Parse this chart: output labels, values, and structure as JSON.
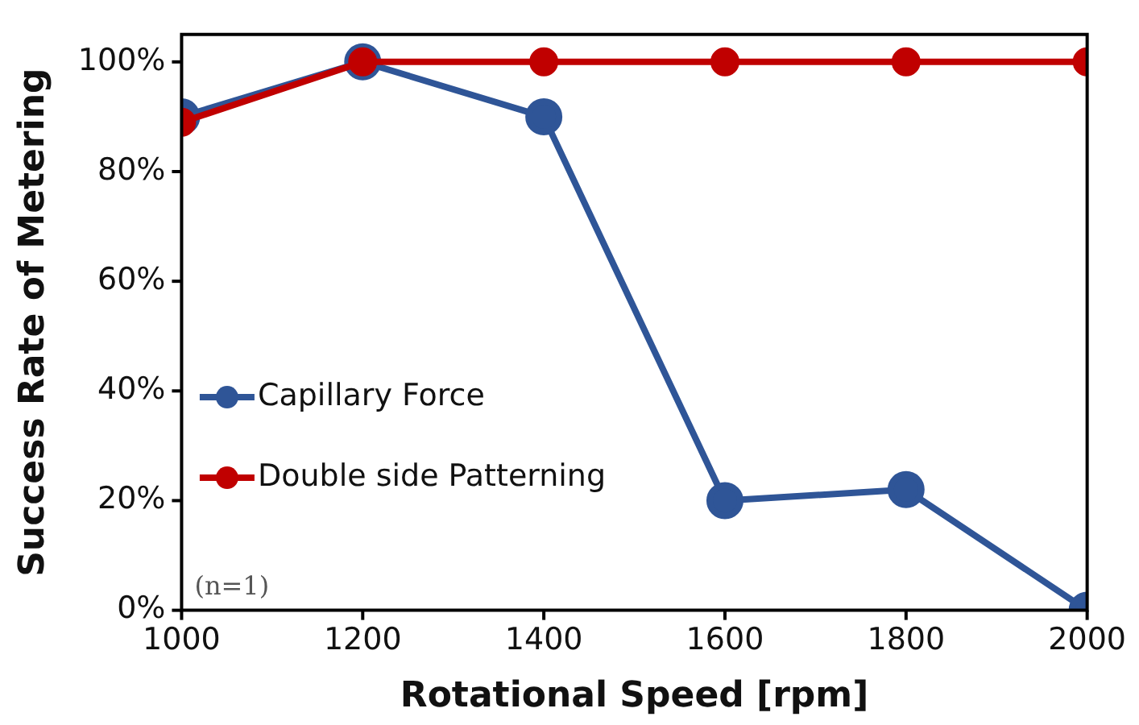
{
  "chart_data": {
    "type": "line",
    "xlabel": "Rotational Speed [rpm]",
    "ylabel": "Success Rate of Metering",
    "x": [
      1000,
      1200,
      1400,
      1600,
      1800,
      2000
    ],
    "series": [
      {
        "name": "Capillary Force",
        "color": "#2f5597",
        "values": [
          90,
          100,
          90,
          20,
          22,
          0
        ]
      },
      {
        "name": "Double side Patterning",
        "color": "#c00000",
        "values": [
          89,
          100,
          100,
          100,
          100,
          100
        ]
      }
    ],
    "xlim": [
      1000,
      2000
    ],
    "xticks": [
      1000,
      1200,
      1400,
      1600,
      1800,
      2000
    ],
    "ylim": [
      0,
      105
    ],
    "yticks": [
      {
        "value": 0,
        "label": "0%"
      },
      {
        "value": 20,
        "label": "20%"
      },
      {
        "value": 40,
        "label": "40%"
      },
      {
        "value": 60,
        "label": "60%"
      },
      {
        "value": 80,
        "label": "80%"
      },
      {
        "value": 100,
        "label": "100%"
      }
    ],
    "annotations": [
      "(n=1)"
    ],
    "grid": false,
    "legend": "left",
    "marker": "circle",
    "line_style": "solid"
  }
}
